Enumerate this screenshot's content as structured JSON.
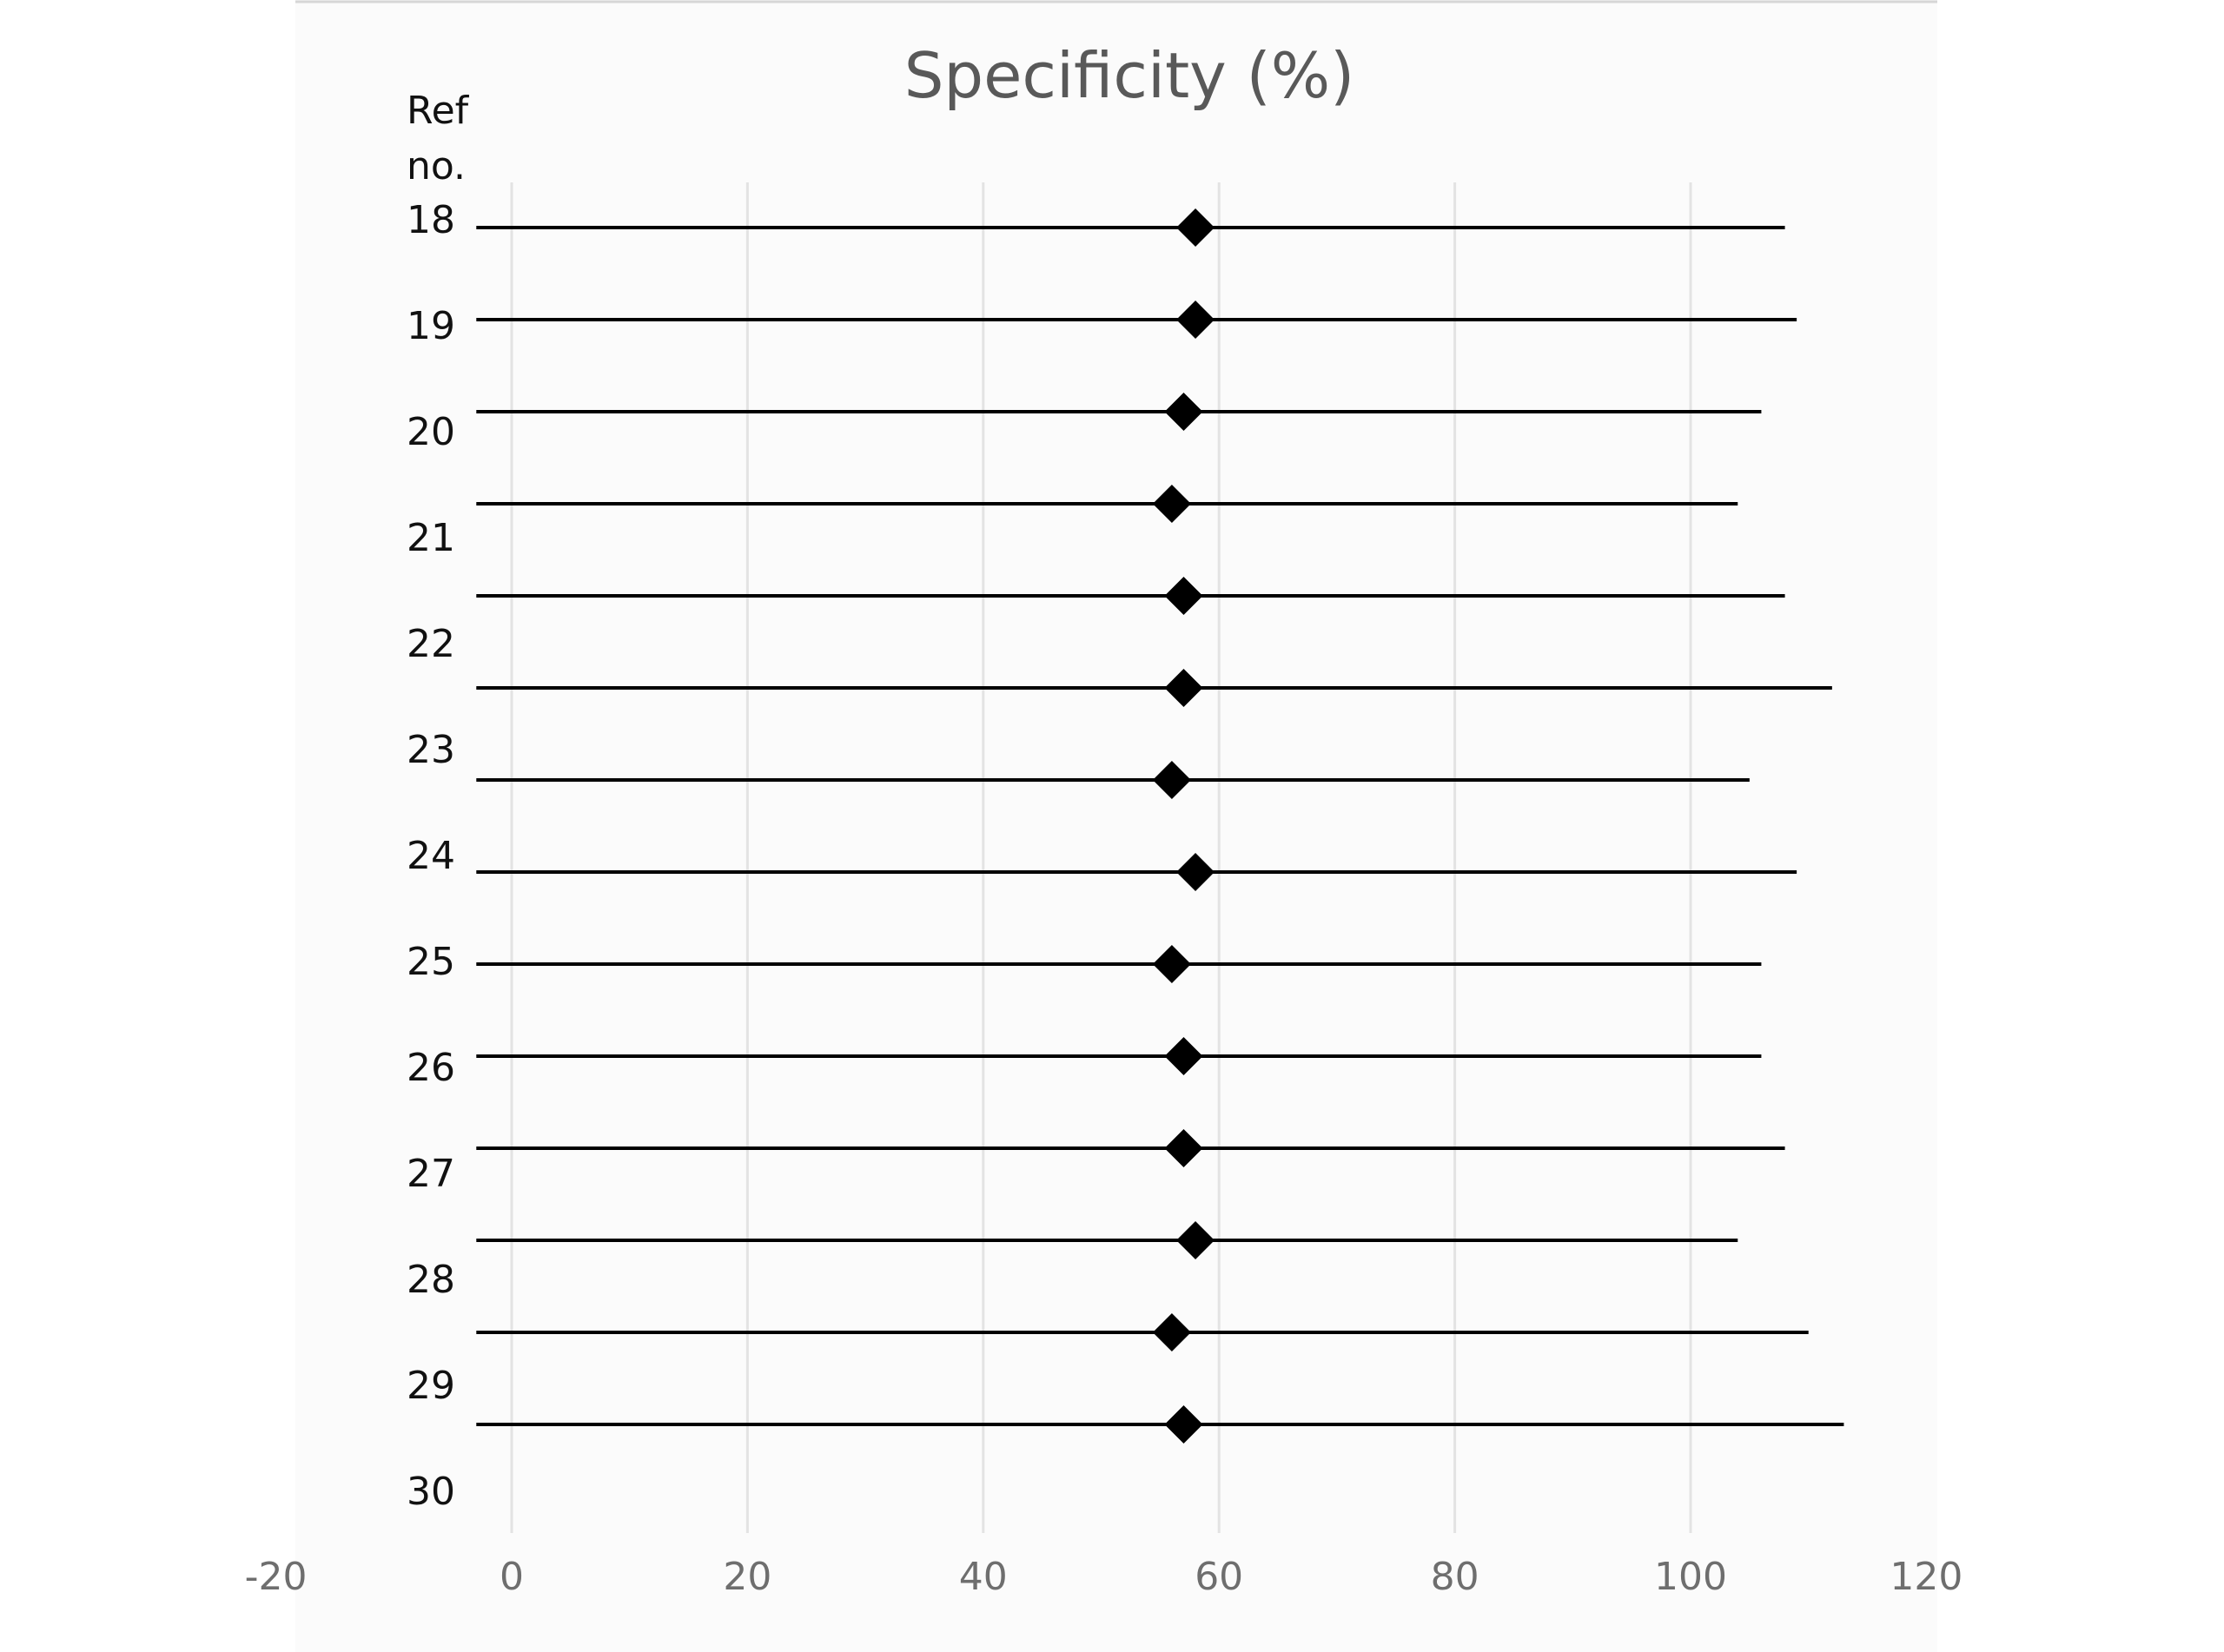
{
  "chart_data": {
    "type": "forest",
    "title": "Specificity (%)",
    "ylabel": "Ref no.",
    "ylabel_lines": [
      "Ref",
      "no."
    ],
    "xlim": [
      -20,
      120
    ],
    "x_ticks": [
      {
        "value": -20,
        "label": "-20"
      },
      {
        "value": 0,
        "label": "0"
      },
      {
        "value": 20,
        "label": "20"
      },
      {
        "value": 40,
        "label": "40"
      },
      {
        "value": 60,
        "label": "60"
      },
      {
        "value": 80,
        "label": "80"
      },
      {
        "value": 100,
        "label": "100"
      },
      {
        "value": 120,
        "label": "120"
      }
    ],
    "gridlines_at": [
      0,
      20,
      40,
      60,
      80,
      100
    ],
    "grid": true,
    "marker": "diamond",
    "rows": [
      {
        "label": "18",
        "estimate": 58,
        "lower": -3,
        "upper": 108
      },
      {
        "label": "19",
        "estimate": 58,
        "lower": -3,
        "upper": 109
      },
      {
        "label": "20",
        "estimate": 57,
        "lower": -3,
        "upper": 106
      },
      {
        "label": "21",
        "estimate": 56,
        "lower": -3,
        "upper": 104
      },
      {
        "label": "22",
        "estimate": 57,
        "lower": -3,
        "upper": 108
      },
      {
        "label": "23",
        "estimate": 57,
        "lower": -3,
        "upper": 112
      },
      {
        "label": "24",
        "estimate": 56,
        "lower": -3,
        "upper": 105
      },
      {
        "label": "25",
        "estimate": 58,
        "lower": -3,
        "upper": 109
      },
      {
        "label": "26",
        "estimate": 56,
        "lower": -3,
        "upper": 106
      },
      {
        "label": "27",
        "estimate": 57,
        "lower": -3,
        "upper": 106
      },
      {
        "label": "28",
        "estimate": 57,
        "lower": -3,
        "upper": 108
      },
      {
        "label": "29",
        "estimate": 58,
        "lower": -3,
        "upper": 104
      },
      {
        "label": "30",
        "estimate": 56,
        "lower": -3,
        "upper": 110
      },
      {
        "label": "",
        "estimate": 57,
        "lower": -3,
        "upper": 113
      }
    ],
    "colors": {
      "background": "#fbfbfb",
      "line": "#000000",
      "marker": "#000000",
      "grid": "#e3e3e3",
      "title": "#595959",
      "tick": "#6e6e6e",
      "label": "#111111"
    }
  }
}
